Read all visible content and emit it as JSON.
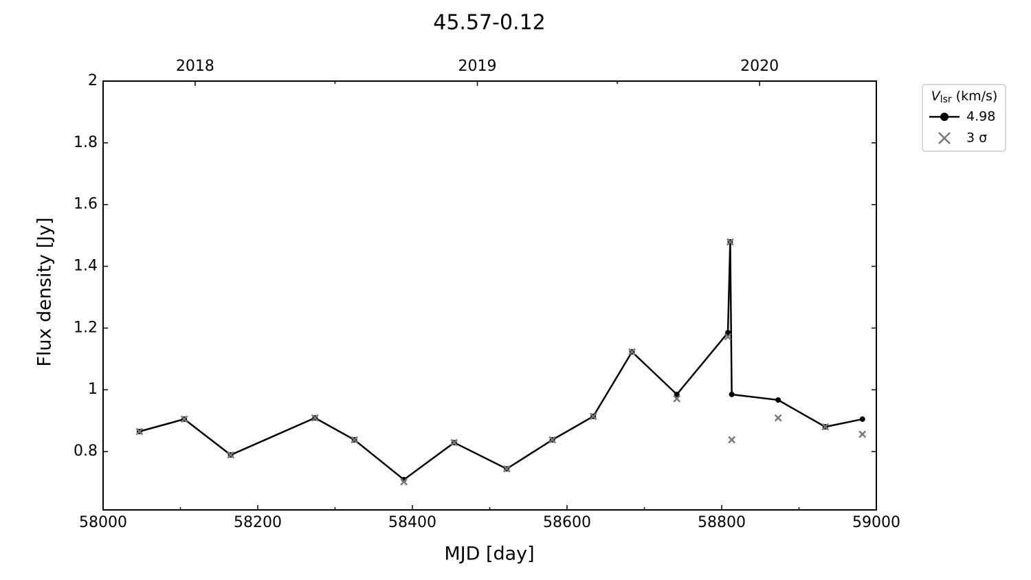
{
  "chart_data": {
    "type": "line",
    "title": "45.57-0.12",
    "x_label": "MJD [day]",
    "y_label": "Flux density [Jy]",
    "x": [
      58047,
      58105,
      58165,
      58274,
      58325,
      58389,
      58454,
      58522,
      58581,
      58634,
      58684,
      58742,
      58808,
      58811,
      58813,
      58873,
      58934,
      58982
    ],
    "series": [
      {
        "name": "4.98",
        "color": "#000000",
        "marker": "circle",
        "line": true,
        "values": [
          0.865,
          0.905,
          0.789,
          0.909,
          0.838,
          0.709,
          0.829,
          0.744,
          0.838,
          0.914,
          1.123,
          0.985,
          1.185,
          1.479,
          0.985,
          0.967,
          0.88,
          0.905
        ]
      },
      {
        "name": "3 σ",
        "color": "#777777",
        "marker": "cross",
        "line": false,
        "values": [
          0.865,
          0.905,
          0.789,
          0.909,
          0.838,
          0.702,
          0.829,
          0.744,
          0.838,
          0.914,
          1.123,
          0.971,
          1.172,
          1.479,
          0.838,
          0.909,
          0.88,
          0.856
        ]
      }
    ],
    "legend_title": {
      "symbol": "V",
      "subscript": "lsr",
      "unit": "(km/s)"
    },
    "legend_position": "outside-upper-right",
    "xlim": [
      58000,
      59000
    ],
    "xticks": [
      58000,
      58200,
      58400,
      58600,
      58800,
      59000
    ],
    "xminorticks": [
      58100,
      58300,
      58500,
      58700,
      58900
    ],
    "x2ticks": [
      {
        "value": 58119,
        "label": "2018"
      },
      {
        "value": 58484,
        "label": "2019"
      },
      {
        "value": 58849,
        "label": "2020"
      }
    ],
    "x2minorticks": [
      58300,
      58665
    ],
    "ylim": [
      0.611,
      2.0
    ],
    "yticks": [
      0.8,
      1.0,
      1.2,
      1.4,
      1.6,
      1.8,
      2.0
    ],
    "grid": false
  }
}
